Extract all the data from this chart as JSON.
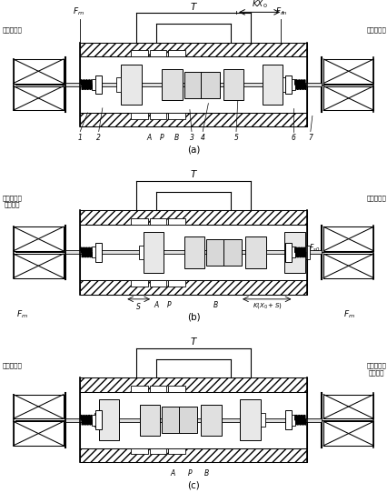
{
  "bg_color": "#ffffff",
  "panels": [
    {
      "label": "(a)",
      "shift": 0,
      "ll": "电磁铁断电",
      "rl": "电磁铁断电",
      "la": false,
      "ra": false,
      "top_annot": true,
      "bot_ports": [
        [
          "1",
          0.195
        ],
        [
          "2",
          0.245
        ],
        [
          "A",
          0.38
        ],
        [
          "P",
          0.415
        ],
        [
          "B",
          0.455
        ],
        [
          "3",
          0.495
        ],
        [
          "4",
          0.525
        ],
        [
          "5",
          0.615
        ],
        [
          "6",
          0.77
        ],
        [
          "7",
          0.815
        ]
      ]
    },
    {
      "label": "(b)",
      "shift": 0.06,
      "ll": "电磁铁通电\n衔铁吸合",
      "rl": "电磁铁断电",
      "la": true,
      "ra": false,
      "top_annot": false,
      "bot_ports": [
        [
          "A",
          0.4
        ],
        [
          "P",
          0.435
        ],
        [
          "B",
          0.56
        ]
      ]
    },
    {
      "label": "(c)",
      "shift": -0.06,
      "ll": "电磁铁断电",
      "rl": "电磁铁通电\n衔铁吸合",
      "la": false,
      "ra": true,
      "top_annot": false,
      "bot_ports": [
        [
          "A",
          0.445
        ],
        [
          "P",
          0.49
        ],
        [
          "B",
          0.535
        ]
      ]
    }
  ]
}
